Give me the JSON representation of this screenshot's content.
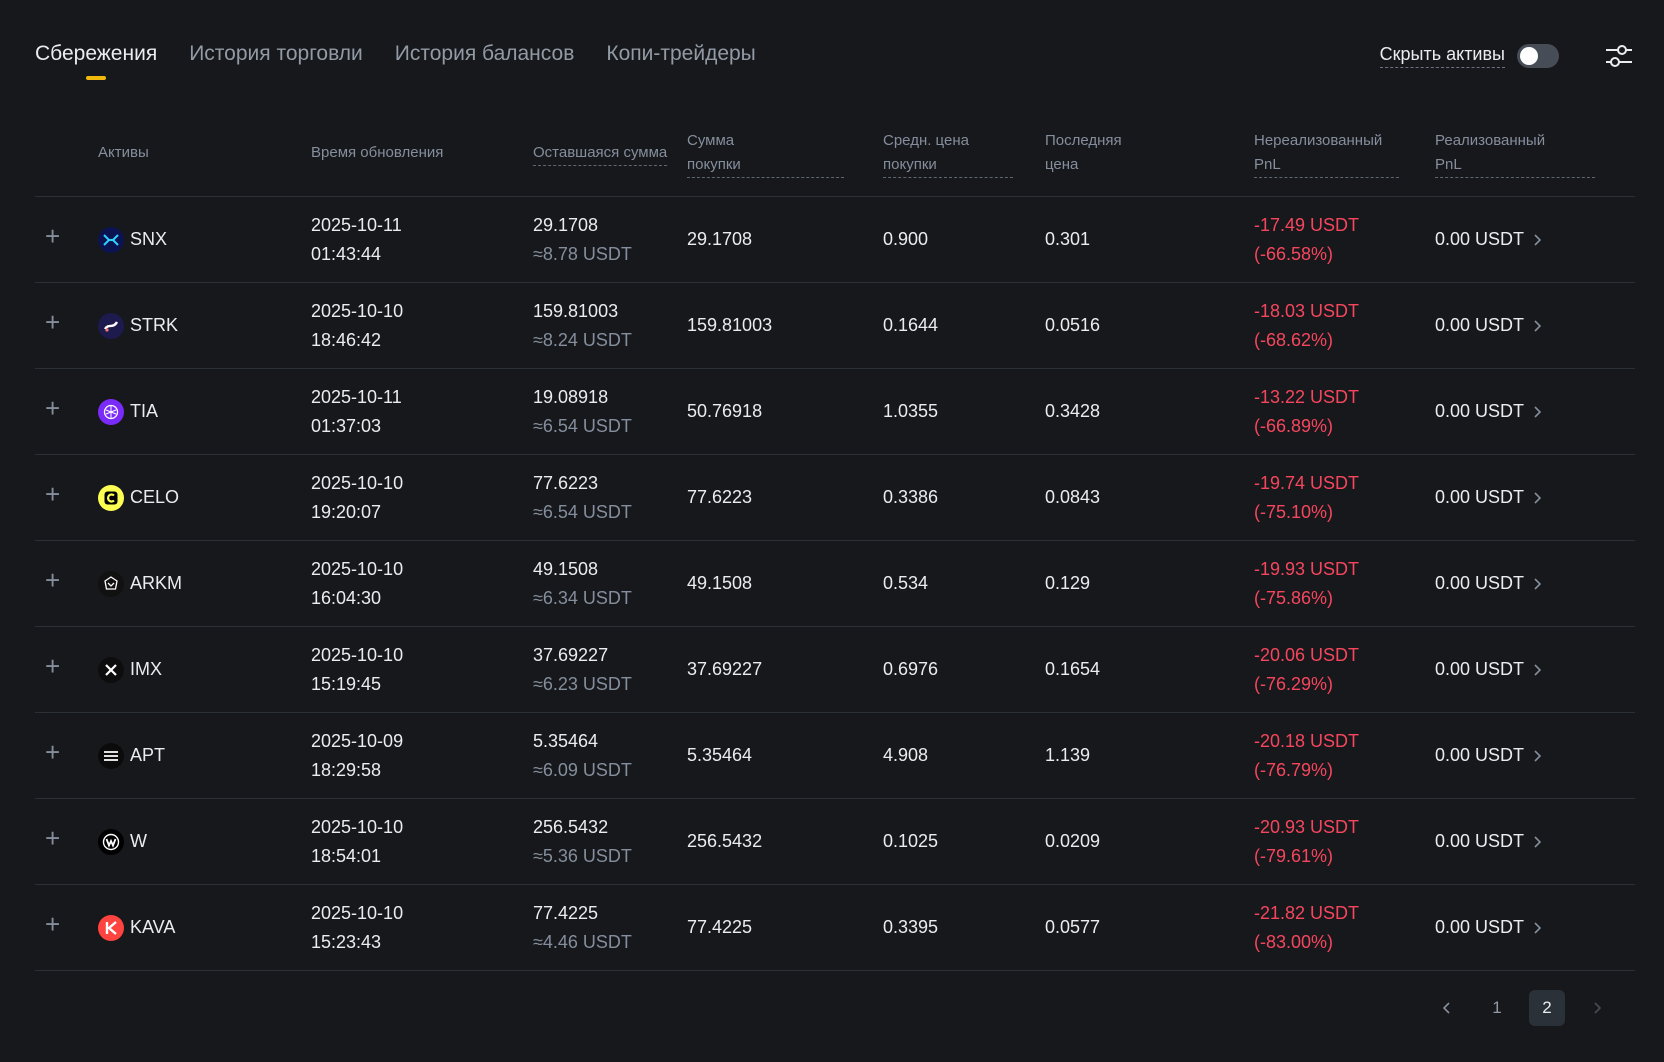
{
  "tabs": [
    {
      "label": "Сбережения",
      "active": true
    },
    {
      "label": "История торговли",
      "active": false
    },
    {
      "label": "История балансов",
      "active": false
    },
    {
      "label": "Копи-трейдеры",
      "active": false
    }
  ],
  "controls": {
    "hide_assets_label": "Скрыть активы",
    "hide_assets_on": false,
    "filter_icon": "sliders-icon"
  },
  "columns": {
    "asset": "Активы",
    "updated": "Время обновления",
    "remaining": "Оставшаяся сумма",
    "purchase_line1": "Сумма",
    "purchase_line2": "покупки",
    "avg_line1": "Средн. цена",
    "avg_line2": "покупки",
    "last_line1": "Последняя",
    "last_line2": "цена",
    "unreal_line1": "Нереализованный",
    "unreal_line2": "PnL",
    "real_line1": "Реализованный",
    "real_line2": "PnL"
  },
  "expand_symbol": "+",
  "rows": [
    {
      "asset": "SNX",
      "icon": "snx-logo-icon",
      "icon_color": "#0b1450",
      "date": "2025-10-11",
      "time": "01:43:44",
      "remaining": "29.1708",
      "remaining_usdt": "≈8.78 USDT",
      "purchase": "29.1708",
      "avg_price": "0.900",
      "last_price": "0.301",
      "unrealized": "-17.49 USDT",
      "unrealized_pct": "(-66.58%)",
      "realized": "0.00 USDT"
    },
    {
      "asset": "STRK",
      "icon": "strk-logo-icon",
      "icon_color": "#1d1a4e",
      "date": "2025-10-10",
      "time": "18:46:42",
      "remaining": "159.81003",
      "remaining_usdt": "≈8.24 USDT",
      "purchase": "159.81003",
      "avg_price": "0.1644",
      "last_price": "0.0516",
      "unrealized": "-18.03 USDT",
      "unrealized_pct": "(-68.62%)",
      "realized": "0.00 USDT"
    },
    {
      "asset": "TIA",
      "icon": "tia-logo-icon",
      "icon_color": "#7b2bf9",
      "date": "2025-10-11",
      "time": "01:37:03",
      "remaining": "19.08918",
      "remaining_usdt": "≈6.54 USDT",
      "purchase": "50.76918",
      "avg_price": "1.0355",
      "last_price": "0.3428",
      "unrealized": "-13.22 USDT",
      "unrealized_pct": "(-66.89%)",
      "realized": "0.00 USDT"
    },
    {
      "asset": "CELO",
      "icon": "celo-logo-icon",
      "icon_color": "#fcff52",
      "date": "2025-10-10",
      "time": "19:20:07",
      "remaining": "77.6223",
      "remaining_usdt": "≈6.54 USDT",
      "purchase": "77.6223",
      "avg_price": "0.3386",
      "last_price": "0.0843",
      "unrealized": "-19.74 USDT",
      "unrealized_pct": "(-75.10%)",
      "realized": "0.00 USDT"
    },
    {
      "asset": "ARKM",
      "icon": "arkm-logo-icon",
      "icon_color": "#111111",
      "date": "2025-10-10",
      "time": "16:04:30",
      "remaining": "49.1508",
      "remaining_usdt": "≈6.34 USDT",
      "purchase": "49.1508",
      "avg_price": "0.534",
      "last_price": "0.129",
      "unrealized": "-19.93 USDT",
      "unrealized_pct": "(-75.86%)",
      "realized": "0.00 USDT"
    },
    {
      "asset": "IMX",
      "icon": "imx-logo-icon",
      "icon_color": "#0d0d0d",
      "date": "2025-10-10",
      "time": "15:19:45",
      "remaining": "37.69227",
      "remaining_usdt": "≈6.23 USDT",
      "purchase": "37.69227",
      "avg_price": "0.6976",
      "last_price": "0.1654",
      "unrealized": "-20.06 USDT",
      "unrealized_pct": "(-76.29%)",
      "realized": "0.00 USDT"
    },
    {
      "asset": "APT",
      "icon": "apt-logo-icon",
      "icon_color": "#0b0b0b",
      "date": "2025-10-09",
      "time": "18:29:58",
      "remaining": "5.35464",
      "remaining_usdt": "≈6.09 USDT",
      "purchase": "5.35464",
      "avg_price": "4.908",
      "last_price": "1.139",
      "unrealized": "-20.18 USDT",
      "unrealized_pct": "(-76.79%)",
      "realized": "0.00 USDT"
    },
    {
      "asset": "W",
      "icon": "w-logo-icon",
      "icon_color": "#000000",
      "date": "2025-10-10",
      "time": "18:54:01",
      "remaining": "256.5432",
      "remaining_usdt": "≈5.36 USDT",
      "purchase": "256.5432",
      "avg_price": "0.1025",
      "last_price": "0.0209",
      "unrealized": "-20.93 USDT",
      "unrealized_pct": "(-79.61%)",
      "realized": "0.00 USDT"
    },
    {
      "asset": "KAVA",
      "icon": "kava-logo-icon",
      "icon_color": "#ff433e",
      "date": "2025-10-10",
      "time": "15:23:43",
      "remaining": "77.4225",
      "remaining_usdt": "≈4.46 USDT",
      "purchase": "77.4225",
      "avg_price": "0.3395",
      "last_price": "0.0577",
      "unrealized": "-21.82 USDT",
      "unrealized_pct": "(-83.00%)",
      "realized": "0.00 USDT"
    }
  ],
  "pagination": {
    "pages": [
      "1",
      "2"
    ],
    "current": "2"
  }
}
